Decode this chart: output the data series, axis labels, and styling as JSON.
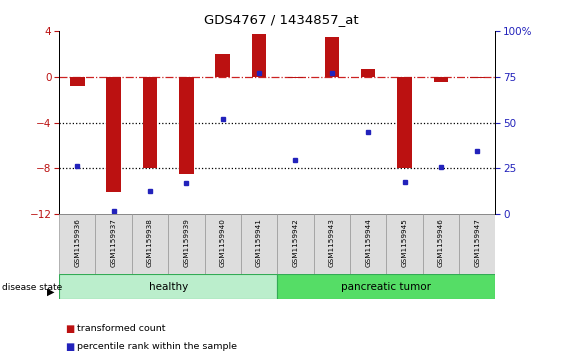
{
  "title": "GDS4767 / 1434857_at",
  "samples": [
    "GSM1159936",
    "GSM1159937",
    "GSM1159938",
    "GSM1159939",
    "GSM1159940",
    "GSM1159941",
    "GSM1159942",
    "GSM1159943",
    "GSM1159944",
    "GSM1159945",
    "GSM1159946",
    "GSM1159947"
  ],
  "red_values": [
    -0.8,
    -10.1,
    -8.0,
    -8.5,
    2.0,
    3.7,
    -0.1,
    3.5,
    0.7,
    -8.0,
    -0.5,
    -0.1
  ],
  "blue_values": [
    -7.8,
    -11.7,
    -10.0,
    -9.3,
    -3.7,
    0.3,
    -7.3,
    0.3,
    -4.8,
    -9.2,
    -7.9,
    -6.5
  ],
  "ylim": [
    -12,
    4
  ],
  "yticks": [
    -12,
    -8,
    -4,
    0,
    4
  ],
  "right_ytick_percs": [
    0,
    25,
    50,
    75,
    100
  ],
  "right_ytick_labels": [
    "0",
    "25",
    "50",
    "75",
    "100%"
  ],
  "bar_color": "#BB1111",
  "dot_color": "#2222BB",
  "dashed_color": "#CC2222",
  "dotted_color": "#000000",
  "healthy_color": "#BBEECC",
  "tumor_color": "#55DD66",
  "healthy_samples": 6,
  "tumor_samples": 6,
  "plot_bg": "#FFFFFF"
}
